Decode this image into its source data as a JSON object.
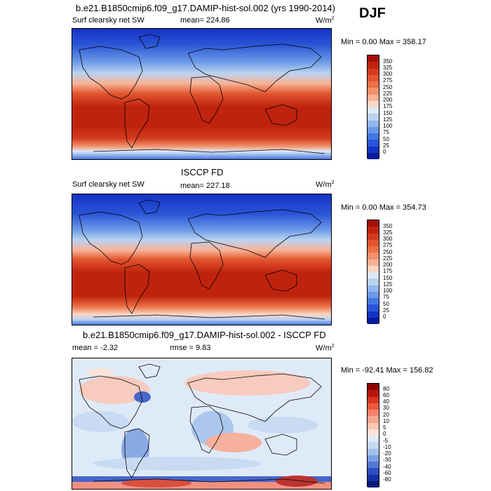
{
  "season": "DJF",
  "panels": [
    {
      "title": "b.e21.B1850cmip6.f09_g17.DAMIP-hist-sol.002 (yrs 1990-2014)",
      "left_label": "Surf clearsky net SW",
      "mean_text": "mean= 224.86",
      "rmse_text": "",
      "units": "W/m",
      "units_sup": "2",
      "minmax": "Min =   0.00 Max = 358.17",
      "colorbar": {
        "ticks": [
          "350",
          "325",
          "300",
          "275",
          "250",
          "225",
          "200",
          "175",
          "150",
          "125",
          "100",
          "75",
          "50",
          "25",
          "0"
        ],
        "colors": [
          "#a50f0b",
          "#c0230d",
          "#d33b1f",
          "#e2542f",
          "#ec7046",
          "#f2906b",
          "#f8b295",
          "#fbd7c4",
          "#dce9f7",
          "#b9d3f1",
          "#91b6ec",
          "#6a98e6",
          "#4477e0",
          "#2a55d6",
          "#1433c4",
          "#0a1a9c"
        ]
      }
    },
    {
      "title": "ISCCP FD",
      "left_label": "Surf clearsky net SW",
      "mean_text": "mean= 227.18",
      "rmse_text": "",
      "units": "W/m",
      "units_sup": "2",
      "minmax": "Min =   0.00 Max = 354.73",
      "colorbar": {
        "ticks": [
          "350",
          "325",
          "300",
          "275",
          "250",
          "225",
          "200",
          "175",
          "150",
          "125",
          "100",
          "75",
          "50",
          "25",
          "0"
        ],
        "colors": [
          "#a50f0b",
          "#c0230d",
          "#d33b1f",
          "#e2542f",
          "#ec7046",
          "#f2906b",
          "#f8b295",
          "#fbd7c4",
          "#dce9f7",
          "#b9d3f1",
          "#91b6ec",
          "#6a98e6",
          "#4477e0",
          "#2a55d6",
          "#1433c4",
          "#0a1a9c"
        ]
      }
    },
    {
      "title": "b.e21.B1850cmip6.f09_g17.DAMIP-hist-sol.002 - ISCCP FD",
      "left_label": "mean =  -2.32",
      "mean_text": "rmse =   9.83",
      "rmse_text": "",
      "units": "W/m",
      "units_sup": "2",
      "minmax": "Min = -92.41 Max = 156.82",
      "colorbar": {
        "ticks": [
          "80",
          "60",
          "40",
          "30",
          "20",
          "10",
          "5",
          "0",
          "-5",
          "-10",
          "-20",
          "-30",
          "-40",
          "-60",
          "-80"
        ],
        "colors": [
          "#8b0000",
          "#b5140e",
          "#d8341f",
          "#ec5a3e",
          "#f5816a",
          "#f9a78f",
          "#fcc6b3",
          "#fde2d6",
          "#dfeaf8",
          "#c4d9f3",
          "#a3c1ec",
          "#7c9fe2",
          "#5379d6",
          "#2d4fc2",
          "#1430a4",
          "#0a1a7a"
        ]
      }
    }
  ]
}
